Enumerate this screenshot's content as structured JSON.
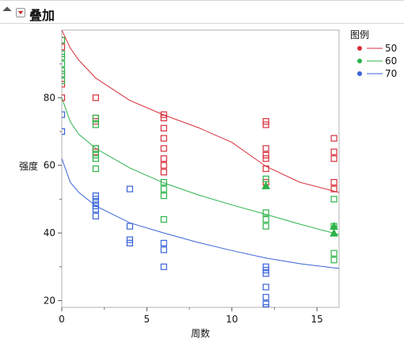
{
  "header": {
    "title": "叠加"
  },
  "chart_data": {
    "type": "scatter",
    "xlabel": "周数",
    "ylabel": "强度",
    "xlim": [
      0,
      16.3
    ],
    "ylim": [
      18,
      100
    ],
    "xticks": [
      0,
      5,
      10,
      15
    ],
    "yticks": [
      20,
      40,
      60,
      80
    ],
    "grid": false,
    "legend": {
      "title": "图例",
      "position": "top-right"
    },
    "series": [
      {
        "name": "50",
        "color": "#d62f3c",
        "points": [
          [
            0,
            97
          ],
          [
            0,
            95
          ],
          [
            0,
            87
          ],
          [
            0,
            84
          ],
          [
            0,
            80
          ],
          [
            2,
            80
          ],
          [
            2,
            74
          ],
          [
            2,
            73
          ],
          [
            2,
            65
          ],
          [
            2,
            64
          ],
          [
            6,
            75
          ],
          [
            6,
            74
          ],
          [
            6,
            71
          ],
          [
            6,
            68
          ],
          [
            6,
            65
          ],
          [
            6,
            62
          ],
          [
            6,
            60
          ],
          [
            6,
            58
          ],
          [
            12,
            73
          ],
          [
            12,
            72
          ],
          [
            12,
            65
          ],
          [
            12,
            63
          ],
          [
            12,
            62
          ],
          [
            12,
            59
          ],
          [
            12,
            55
          ],
          [
            16,
            68
          ],
          [
            16,
            64
          ],
          [
            16,
            62
          ],
          [
            16,
            55
          ],
          [
            16,
            53
          ]
        ],
        "fit": [
          [
            0,
            100
          ],
          [
            0.5,
            94.7
          ],
          [
            1,
            91.1
          ],
          [
            2,
            85.8
          ],
          [
            4,
            79.2
          ],
          [
            6,
            74.9
          ],
          [
            8,
            71.2
          ],
          [
            10,
            66.8
          ],
          [
            12,
            59.7
          ],
          [
            14,
            55
          ],
          [
            16.3,
            52
          ]
        ]
      },
      {
        "name": "60",
        "color": "#2db34a",
        "points": [
          [
            0,
            97
          ],
          [
            0,
            93
          ],
          [
            0,
            92
          ],
          [
            0,
            90
          ],
          [
            0,
            88
          ],
          [
            0,
            87
          ],
          [
            0,
            85
          ],
          [
            2,
            74
          ],
          [
            2,
            72
          ],
          [
            2,
            65
          ],
          [
            2,
            63
          ],
          [
            2,
            62
          ],
          [
            2,
            59
          ],
          [
            6,
            55
          ],
          [
            6,
            53
          ],
          [
            6,
            51
          ],
          [
            6,
            44
          ],
          [
            12,
            56
          ],
          [
            12,
            46
          ],
          [
            12,
            44
          ],
          [
            12,
            42
          ],
          [
            16,
            50
          ],
          [
            16,
            42
          ],
          [
            16,
            34
          ],
          [
            16,
            32
          ]
        ],
        "filled": [
          [
            12,
            54
          ],
          [
            16,
            42
          ],
          [
            16,
            40
          ]
        ],
        "fit": [
          [
            0,
            80
          ],
          [
            0.5,
            72.9
          ],
          [
            1,
            69.2
          ],
          [
            2,
            65
          ],
          [
            4,
            59.2
          ],
          [
            6,
            54.8
          ],
          [
            8,
            51.3
          ],
          [
            10,
            48.3
          ],
          [
            12,
            45.5
          ],
          [
            14,
            42.6
          ],
          [
            16.3,
            39.5
          ]
        ]
      },
      {
        "name": "70",
        "color": "#3a64d6",
        "points": [
          [
            0,
            75
          ],
          [
            0,
            70
          ],
          [
            2,
            51
          ],
          [
            2,
            50
          ],
          [
            2,
            49
          ],
          [
            2,
            48
          ],
          [
            2,
            47
          ],
          [
            2,
            45
          ],
          [
            4,
            53
          ],
          [
            4,
            42
          ],
          [
            4,
            38
          ],
          [
            4,
            37
          ],
          [
            6,
            37
          ],
          [
            6,
            35
          ],
          [
            6,
            30
          ],
          [
            12,
            30
          ],
          [
            12,
            29
          ],
          [
            12,
            28
          ],
          [
            12,
            24
          ],
          [
            12,
            21
          ],
          [
            12,
            19
          ],
          [
            12,
            18
          ]
        ],
        "fit": [
          [
            0,
            62
          ],
          [
            0.5,
            55
          ],
          [
            1,
            52
          ],
          [
            2,
            48
          ],
          [
            4,
            43
          ],
          [
            6,
            40
          ],
          [
            8,
            37.2
          ],
          [
            10,
            34.8
          ],
          [
            12,
            32.6
          ],
          [
            14,
            30.9
          ],
          [
            16.3,
            29.5
          ]
        ]
      }
    ]
  }
}
